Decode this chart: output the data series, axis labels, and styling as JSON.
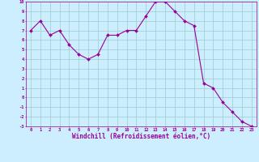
{
  "x": [
    0,
    1,
    2,
    3,
    4,
    5,
    6,
    7,
    8,
    9,
    10,
    11,
    12,
    13,
    14,
    15,
    16,
    17,
    18,
    19,
    20,
    21,
    22,
    23
  ],
  "y": [
    7,
    8,
    6.5,
    7,
    5.5,
    4.5,
    4,
    4.5,
    6.5,
    6.5,
    7,
    7,
    8.5,
    10,
    10,
    9,
    8,
    7.5,
    1.5,
    1,
    -0.5,
    -1.5,
    -2.5,
    -3
  ],
  "line_color": "#990099",
  "marker": "D",
  "marker_size": 2.0,
  "bg_color": "#cceeff",
  "grid_color": "#99cccc",
  "xlabel": "Windchill (Refroidissement éolien,°C)",
  "xlabel_color": "#990099",
  "tick_color": "#990099",
  "ylim": [
    -3,
    10
  ],
  "xlim": [
    -0.5,
    23.5
  ],
  "yticks": [
    -3,
    -2,
    -1,
    0,
    1,
    2,
    3,
    4,
    5,
    6,
    7,
    8,
    9,
    10
  ],
  "xticks": [
    0,
    1,
    2,
    3,
    4,
    5,
    6,
    7,
    8,
    9,
    10,
    11,
    12,
    13,
    14,
    15,
    16,
    17,
    18,
    19,
    20,
    21,
    22,
    23
  ]
}
